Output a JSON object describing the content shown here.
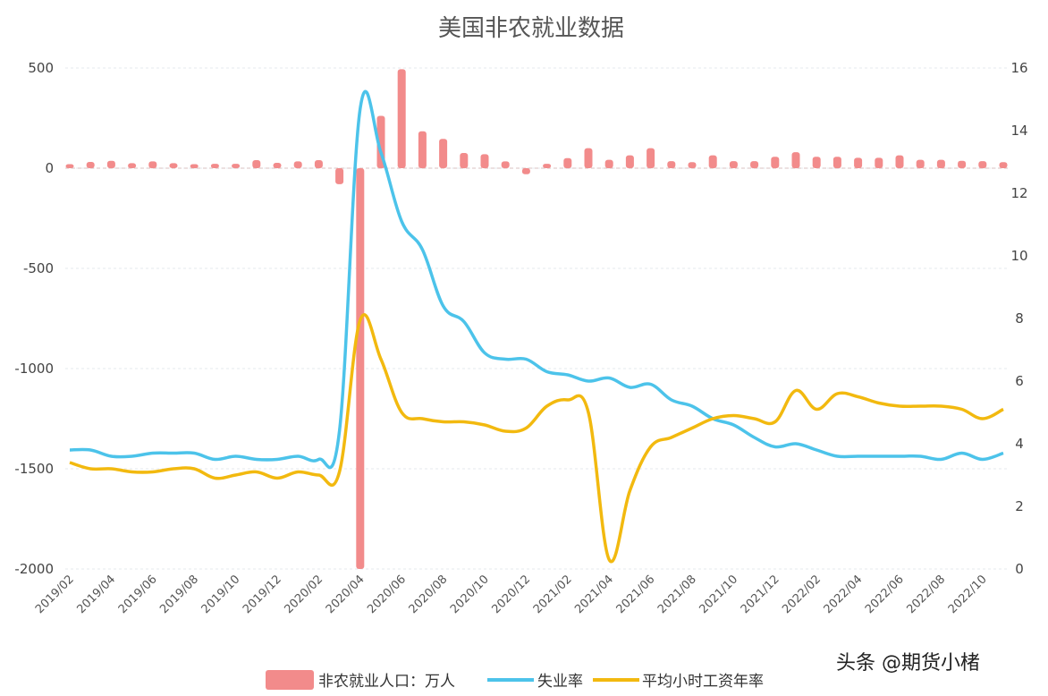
{
  "chart_data": {
    "type": "bar+line",
    "title": "美国非农就业数据",
    "categories": [
      "2019/02",
      "2019/03",
      "2019/04",
      "2019/05",
      "2019/06",
      "2019/07",
      "2019/08",
      "2019/09",
      "2019/10",
      "2019/11",
      "2019/12",
      "2020/01",
      "2020/02",
      "2020/03",
      "2020/04",
      "2020/05",
      "2020/06",
      "2020/07",
      "2020/08",
      "2020/09",
      "2020/10",
      "2020/11",
      "2020/12",
      "2021/01",
      "2021/02",
      "2021/03",
      "2021/04",
      "2021/05",
      "2021/06",
      "2021/07",
      "2021/08",
      "2021/09",
      "2021/10",
      "2021/11",
      "2021/12",
      "2022/01",
      "2022/02",
      "2022/03",
      "2022/04",
      "2022/05",
      "2022/06",
      "2022/07",
      "2022/08",
      "2022/09",
      "2022/10",
      "2022/11"
    ],
    "x_tick_labels": [
      "2019/02",
      "2019/04",
      "2019/06",
      "2019/08",
      "2019/10",
      "2019/12",
      "2020/02",
      "2020/04",
      "2020/06",
      "2020/08",
      "2020/10",
      "2020/12",
      "2021/02",
      "2021/04",
      "2021/06",
      "2021/08",
      "2021/10",
      "2021/12",
      "2022/02",
      "2022/04",
      "2022/06",
      "2022/08",
      "2022/10"
    ],
    "left_axis": {
      "ylim": [
        -2000,
        500
      ],
      "ticks": [
        "500",
        "0",
        "-500",
        "-1000",
        "-1500",
        "-2000"
      ]
    },
    "right_axis": {
      "ylim": [
        0,
        16
      ],
      "ticks": [
        "16",
        "14",
        "12",
        "10",
        "8",
        "6",
        "4",
        "2",
        "0"
      ]
    },
    "series": [
      {
        "name": "非农就业人口：万人",
        "type": "bar",
        "axis": "left",
        "color": "#f28b8b",
        "values": [
          20,
          31,
          37,
          25,
          34,
          25,
          20,
          22,
          22,
          40,
          27,
          34,
          40,
          -80,
          -2050,
          261,
          494,
          184,
          146,
          76,
          70,
          34,
          -30,
          22,
          50,
          100,
          42,
          64,
          100,
          35,
          30,
          64,
          35,
          35,
          57,
          80,
          57,
          57,
          52,
          52,
          64,
          42,
          42,
          37,
          35,
          30
        ]
      },
      {
        "name": "失业率",
        "type": "line",
        "axis": "right",
        "color": "#4cc3ea",
        "values": [
          3.8,
          3.8,
          3.6,
          3.6,
          3.7,
          3.7,
          3.7,
          3.5,
          3.6,
          3.5,
          3.5,
          3.6,
          3.5,
          4.4,
          14.7,
          13.3,
          11.1,
          10.2,
          8.4,
          7.9,
          6.9,
          6.7,
          6.7,
          6.3,
          6.2,
          6.0,
          6.1,
          5.8,
          5.9,
          5.4,
          5.2,
          4.8,
          4.6,
          4.2,
          3.9,
          4.0,
          3.8,
          3.6,
          3.6,
          3.6,
          3.6,
          3.6,
          3.5,
          3.7,
          3.5,
          3.7
        ]
      },
      {
        "name": "平均小时工资年率",
        "type": "line",
        "axis": "right",
        "color": "#f2b90f",
        "values": [
          3.4,
          3.2,
          3.2,
          3.1,
          3.1,
          3.2,
          3.2,
          2.9,
          3.0,
          3.1,
          2.9,
          3.1,
          3.0,
          3.1,
          7.95,
          6.7,
          5.0,
          4.8,
          4.7,
          4.7,
          4.6,
          4.4,
          4.5,
          5.2,
          5.4,
          5.0,
          0.3,
          2.5,
          3.9,
          4.2,
          4.5,
          4.8,
          4.9,
          4.8,
          4.7,
          5.7,
          5.1,
          5.6,
          5.5,
          5.3,
          5.2,
          5.2,
          5.2,
          5.1,
          4.8,
          5.1
        ]
      }
    ],
    "legend_position": "bottom",
    "grid": true
  },
  "watermark": "头条 @期货小楮"
}
